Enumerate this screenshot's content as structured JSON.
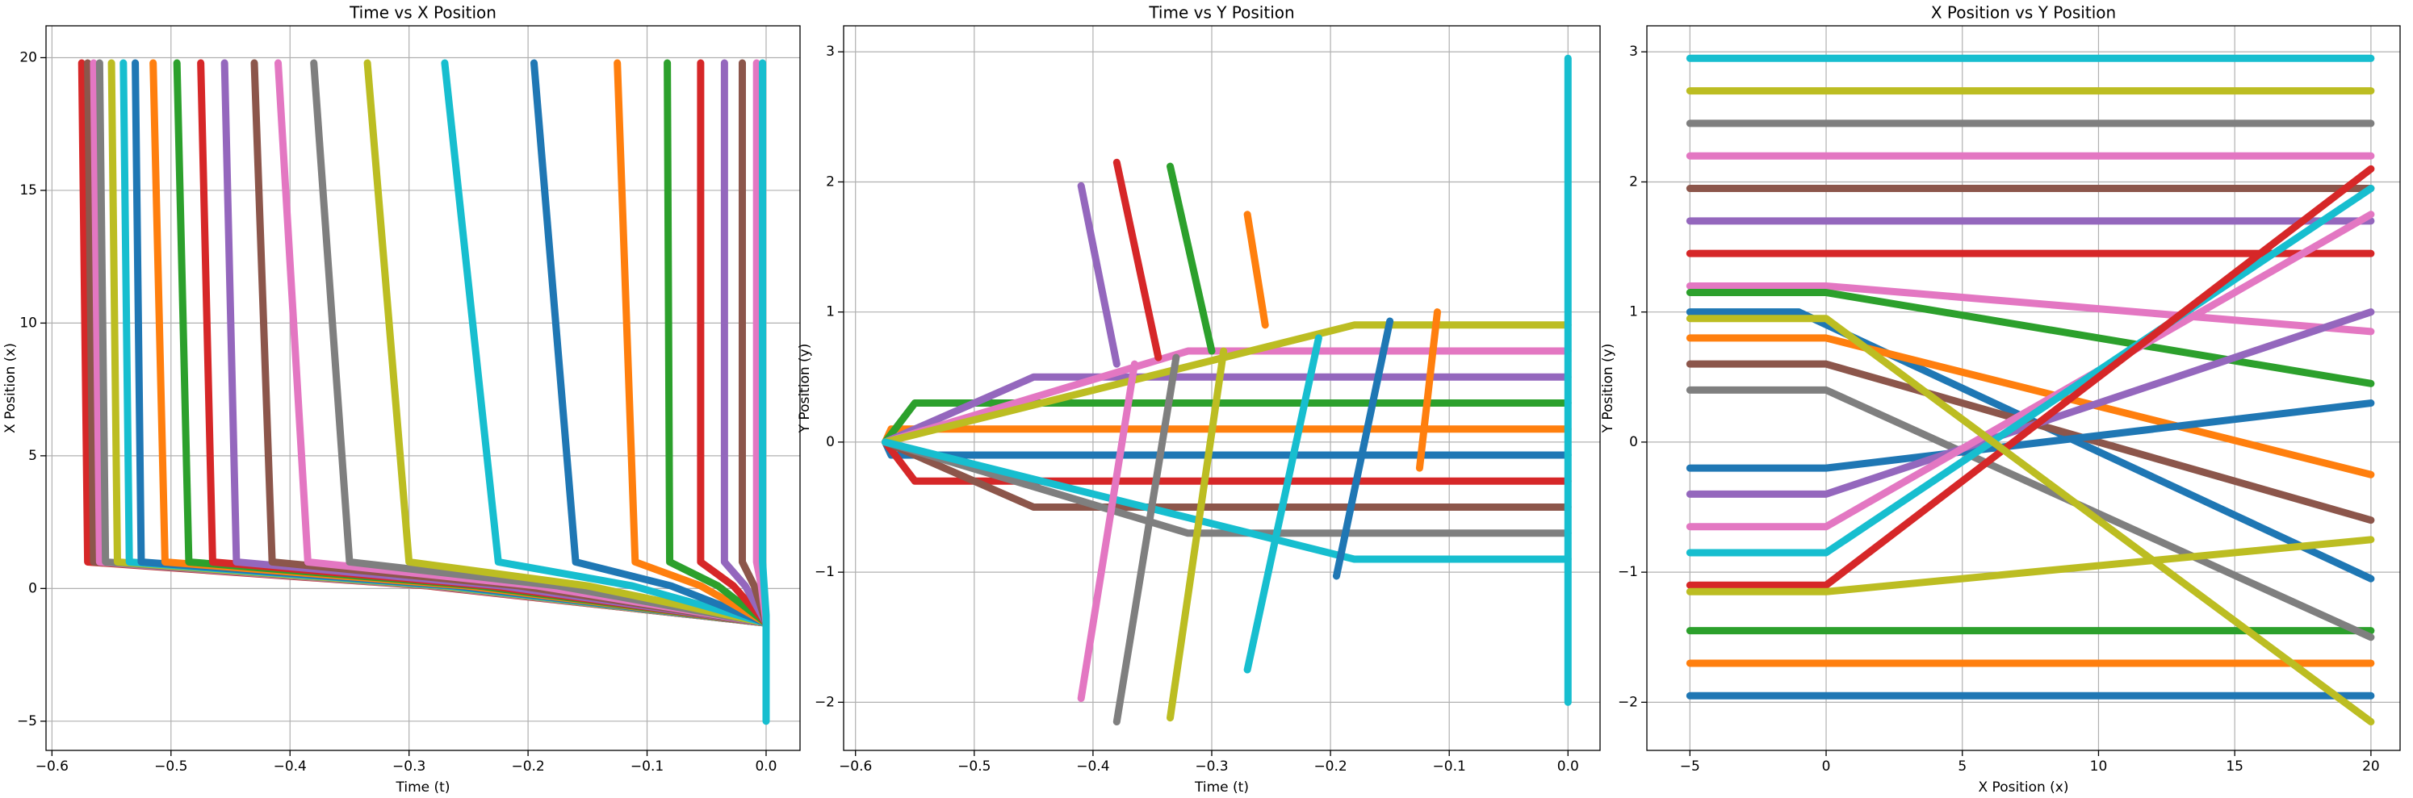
{
  "chart_data": [
    {
      "type": "line",
      "title": "Time vs X Position",
      "x_label": "Time (t)",
      "y_label": "X Position (x)",
      "grid": true,
      "xlim": [
        -0.605,
        0.0285
      ],
      "ylim": [
        -6.1,
        21.2
      ],
      "xticks": [
        {
          "value": -0.6,
          "label": "−0.6"
        },
        {
          "value": -0.5,
          "label": "−0.5"
        },
        {
          "value": -0.4,
          "label": "−0.4"
        },
        {
          "value": -0.3,
          "label": "−0.3"
        },
        {
          "value": -0.2,
          "label": "−0.2"
        },
        {
          "value": -0.1,
          "label": "−0.1"
        },
        {
          "value": 0,
          "label": "0.0"
        }
      ],
      "yticks": [
        {
          "value": -5,
          "label": "−5"
        },
        0,
        5,
        10,
        15,
        20
      ],
      "series": [
        {
          "color": "#d62728",
          "x": [
            0,
            -0.285,
            -0.57,
            -0.575
          ],
          "values": [
            -1.3,
            0.1,
            1.0,
            19.8
          ]
        },
        {
          "color": "#8c564b",
          "x": [
            0,
            -0.2825,
            -0.565,
            -0.57
          ],
          "values": [
            -1.3,
            0.1,
            1.0,
            19.8
          ]
        },
        {
          "color": "#e377c2",
          "x": [
            0,
            -0.28,
            -0.56,
            -0.565
          ],
          "values": [
            -1.3,
            0.1,
            1.0,
            19.8
          ]
        },
        {
          "color": "#7f7f7f",
          "x": [
            0,
            -0.2775,
            -0.555,
            -0.56
          ],
          "values": [
            -1.3,
            0.1,
            1.0,
            19.8
          ]
        },
        {
          "color": "#bcbd22",
          "x": [
            0,
            -0.2725,
            -0.545,
            -0.55
          ],
          "values": [
            -1.3,
            0.1,
            1.0,
            19.8
          ]
        },
        {
          "color": "#17becf",
          "x": [
            0,
            -0.2675,
            -0.535,
            -0.54
          ],
          "values": [
            -1.3,
            0.1,
            1.0,
            19.8
          ]
        },
        {
          "color": "#1f77b4",
          "x": [
            0,
            -0.2625,
            -0.525,
            -0.53
          ],
          "values": [
            -1.3,
            0.1,
            1.0,
            19.8
          ]
        },
        {
          "color": "#ff7f0e",
          "x": [
            0,
            -0.2525,
            -0.505,
            -0.515
          ],
          "values": [
            -1.3,
            0.1,
            1.0,
            19.8
          ]
        },
        {
          "color": "#2ca02c",
          "x": [
            0,
            -0.2425,
            -0.485,
            -0.495
          ],
          "values": [
            -1.3,
            0.1,
            1.0,
            19.8
          ]
        },
        {
          "color": "#d62728",
          "x": [
            0,
            -0.2325,
            -0.465,
            -0.475
          ],
          "values": [
            -1.3,
            0.1,
            1.0,
            19.8
          ]
        },
        {
          "color": "#9467bd",
          "x": [
            0,
            -0.2225,
            -0.445,
            -0.455
          ],
          "values": [
            -1.3,
            0.1,
            1.0,
            19.8
          ]
        },
        {
          "color": "#8c564b",
          "x": [
            0,
            -0.2075,
            -0.415,
            -0.43
          ],
          "values": [
            -1.3,
            0.1,
            1.0,
            19.8
          ]
        },
        {
          "color": "#e377c2",
          "x": [
            0,
            -0.1925,
            -0.385,
            -0.41
          ],
          "values": [
            -1.3,
            0.1,
            1.0,
            19.8
          ]
        },
        {
          "color": "#7f7f7f",
          "x": [
            0,
            -0.175,
            -0.35,
            -0.38
          ],
          "values": [
            -1.3,
            0.1,
            1.0,
            19.8
          ]
        },
        {
          "color": "#bcbd22",
          "x": [
            0,
            -0.15,
            -0.3,
            -0.335
          ],
          "values": [
            -1.3,
            0.1,
            1.0,
            19.8
          ]
        },
        {
          "color": "#17becf",
          "x": [
            0,
            -0.1125,
            -0.225,
            -0.27
          ],
          "values": [
            -1.3,
            0.1,
            1.0,
            19.8
          ]
        },
        {
          "color": "#1f77b4",
          "x": [
            0,
            -0.08,
            -0.16,
            -0.195
          ],
          "values": [
            -1.3,
            0.1,
            1.0,
            19.8
          ]
        },
        {
          "color": "#ff7f0e",
          "x": [
            0,
            -0.055,
            -0.11,
            -0.125
          ],
          "values": [
            -1.3,
            0.1,
            1.0,
            19.8
          ]
        },
        {
          "color": "#2ca02c",
          "x": [
            0,
            -0.0405,
            -0.081,
            -0.083
          ],
          "values": [
            -1.3,
            0.1,
            1.0,
            19.8
          ]
        },
        {
          "color": "#d62728",
          "x": [
            0,
            -0.0275,
            -0.055,
            -0.055
          ],
          "values": [
            -1.3,
            0.1,
            1.0,
            19.8
          ]
        },
        {
          "color": "#9467bd",
          "x": [
            0,
            -0.0175,
            -0.035,
            -0.035
          ],
          "values": [
            -1.3,
            0.1,
            1.0,
            19.8
          ]
        },
        {
          "color": "#8c564b",
          "x": [
            0,
            -0.01,
            -0.02,
            -0.02
          ],
          "values": [
            -1.3,
            0.1,
            1.0,
            19.8
          ]
        },
        {
          "color": "#e377c2",
          "x": [
            0,
            -0.004,
            -0.008,
            -0.008
          ],
          "values": [
            -1.3,
            0.1,
            1.0,
            19.8
          ]
        },
        {
          "color": "#17becf",
          "x": [
            0,
            0,
            -0.003,
            -0.003
          ],
          "values": [
            -5,
            -1.0,
            1.0,
            19.8
          ]
        }
      ]
    },
    {
      "type": "line",
      "title": "Time vs Y Position",
      "x_label": "Time (t)",
      "y_label": "Y Position (y)",
      "grid": true,
      "xlim": [
        -0.61,
        0.027
      ],
      "ylim": [
        -2.37,
        3.2
      ],
      "xticks": [
        {
          "value": -0.6,
          "label": "−0.6"
        },
        {
          "value": -0.5,
          "label": "−0.5"
        },
        {
          "value": -0.4,
          "label": "−0.4"
        },
        {
          "value": -0.3,
          "label": "−0.3"
        },
        {
          "value": -0.2,
          "label": "−0.2"
        },
        {
          "value": -0.1,
          "label": "−0.1"
        },
        {
          "value": 0,
          "label": "0.0"
        }
      ],
      "yticks": [
        {
          "value": -2,
          "label": "−2"
        },
        {
          "value": -1,
          "label": "−1"
        },
        0,
        1,
        2,
        3
      ],
      "series": [
        {
          "color": "#ff7f0e",
          "x": [
            -0.575,
            -0.57,
            0
          ],
          "values": [
            0,
            0.1,
            0.1
          ]
        },
        {
          "color": "#1f77b4",
          "x": [
            -0.575,
            -0.57,
            0
          ],
          "values": [
            0,
            -0.1,
            -0.1
          ]
        },
        {
          "color": "#2ca02c",
          "x": [
            -0.575,
            -0.55,
            0
          ],
          "values": [
            0,
            0.3,
            0.3
          ]
        },
        {
          "color": "#d62728",
          "x": [
            -0.575,
            -0.55,
            0
          ],
          "values": [
            0,
            -0.3,
            -0.3
          ]
        },
        {
          "color": "#9467bd",
          "x": [
            -0.575,
            -0.45,
            0
          ],
          "values": [
            0,
            0.5,
            0.5
          ]
        },
        {
          "color": "#8c564b",
          "x": [
            -0.575,
            -0.45,
            0
          ],
          "values": [
            0,
            -0.5,
            -0.5
          ]
        },
        {
          "color": "#e377c2",
          "x": [
            -0.575,
            -0.32,
            0
          ],
          "values": [
            0,
            0.7,
            0.7
          ]
        },
        {
          "color": "#7f7f7f",
          "x": [
            -0.575,
            -0.32,
            0
          ],
          "values": [
            0,
            -0.7,
            -0.7
          ]
        },
        {
          "color": "#bcbd22",
          "x": [
            -0.575,
            -0.18,
            0
          ],
          "values": [
            0,
            0.9,
            0.9
          ]
        },
        {
          "color": "#17becf",
          "x": [
            -0.575,
            -0.18,
            0
          ],
          "values": [
            0,
            -0.9,
            -0.9
          ]
        },
        {
          "color": "#17becf",
          "x": [
            -0.27,
            -0.21
          ],
          "values": [
            -1.75,
            0.8
          ]
        },
        {
          "color": "#ff7f0e",
          "x": [
            -0.27,
            -0.255
          ],
          "values": [
            1.75,
            0.9
          ]
        },
        {
          "color": "#bcbd22",
          "x": [
            -0.335,
            -0.29
          ],
          "values": [
            -2.12,
            0.7
          ]
        },
        {
          "color": "#2ca02c",
          "x": [
            -0.335,
            -0.3
          ],
          "values": [
            2.12,
            0.7
          ]
        },
        {
          "color": "#7f7f7f",
          "x": [
            -0.38,
            -0.33
          ],
          "values": [
            -2.15,
            0.65
          ]
        },
        {
          "color": "#d62728",
          "x": [
            -0.38,
            -0.345
          ],
          "values": [
            2.15,
            0.65
          ]
        },
        {
          "color": "#e377c2",
          "x": [
            -0.41,
            -0.365
          ],
          "values": [
            -1.97,
            0.6
          ]
        },
        {
          "color": "#9467bd",
          "x": [
            -0.41,
            -0.38
          ],
          "values": [
            1.97,
            0.6
          ]
        },
        {
          "color": "#1f77b4",
          "x": [
            -0.195,
            -0.15
          ],
          "values": [
            -1.03,
            0.93
          ]
        },
        {
          "color": "#ff7f0e",
          "x": [
            -0.125,
            -0.11
          ],
          "values": [
            -0.2,
            1.0
          ]
        },
        {
          "color": "#17becf",
          "x": [
            0,
            0
          ],
          "values": [
            -2,
            2.95
          ]
        }
      ]
    },
    {
      "type": "line",
      "title": "X Position vs Y Position",
      "x_label": "X Position (x)",
      "y_label": "Y Position (y)",
      "grid": true,
      "xlim": [
        -6.58,
        21.07
      ],
      "ylim": [
        -2.37,
        3.2
      ],
      "xticks": [
        {
          "value": -5,
          "label": "−5"
        },
        0,
        5,
        10,
        15,
        20
      ],
      "yticks": [
        {
          "value": -2,
          "label": "−2"
        },
        {
          "value": -1,
          "label": "−1"
        },
        0,
        1,
        2,
        3
      ],
      "series": [
        {
          "color": "#17becf",
          "x": [
            -5,
            20
          ],
          "values": [
            2.95,
            2.95
          ]
        },
        {
          "color": "#bcbd22",
          "x": [
            -5,
            20
          ],
          "values": [
            2.7,
            2.7
          ]
        },
        {
          "color": "#7f7f7f",
          "x": [
            -5,
            20
          ],
          "values": [
            2.45,
            2.45
          ]
        },
        {
          "color": "#e377c2",
          "x": [
            -5,
            20
          ],
          "values": [
            2.2,
            2.2
          ]
        },
        {
          "color": "#8c564b",
          "x": [
            -5,
            20
          ],
          "values": [
            1.95,
            1.95
          ]
        },
        {
          "color": "#9467bd",
          "x": [
            -5,
            20
          ],
          "values": [
            1.7,
            1.7
          ]
        },
        {
          "color": "#d62728",
          "x": [
            -5,
            20
          ],
          "values": [
            1.45,
            1.45
          ]
        },
        {
          "color": "#2ca02c",
          "x": [
            -5,
            20
          ],
          "values": [
            -1.45,
            -1.45
          ]
        },
        {
          "color": "#ff7f0e",
          "x": [
            -5,
            20
          ],
          "values": [
            -1.7,
            -1.7
          ]
        },
        {
          "color": "#1f77b4",
          "x": [
            -5,
            20
          ],
          "values": [
            -1.95,
            -1.95
          ]
        },
        {
          "color": "#e377c2",
          "x": [
            -5,
            0,
            20
          ],
          "values": [
            1.2,
            1.2,
            0.85
          ]
        },
        {
          "color": "#2ca02c",
          "x": [
            -5,
            0,
            20
          ],
          "values": [
            1.15,
            1.15,
            0.45
          ]
        },
        {
          "color": "#1f77b4",
          "x": [
            -5,
            -1,
            20
          ],
          "values": [
            1.0,
            1.0,
            -1.05
          ]
        },
        {
          "color": "#ff7f0e",
          "x": [
            -5,
            0,
            20
          ],
          "values": [
            0.8,
            0.8,
            -0.25
          ]
        },
        {
          "color": "#8c564b",
          "x": [
            -5,
            0,
            20
          ],
          "values": [
            0.6,
            0.6,
            -0.6
          ]
        },
        {
          "color": "#7f7f7f",
          "x": [
            -5,
            0,
            20
          ],
          "values": [
            0.4,
            0.4,
            -1.5
          ]
        },
        {
          "color": "#1f77b4",
          "x": [
            -5,
            0,
            20
          ],
          "values": [
            -0.2,
            -0.2,
            0.3
          ]
        },
        {
          "color": "#9467bd",
          "x": [
            -5,
            0,
            20
          ],
          "values": [
            -0.4,
            -0.4,
            1.0
          ]
        },
        {
          "color": "#e377c2",
          "x": [
            -5,
            0,
            20
          ],
          "values": [
            -0.65,
            -0.65,
            1.75
          ]
        },
        {
          "color": "#17becf",
          "x": [
            -5,
            0,
            20
          ],
          "values": [
            -0.85,
            -0.85,
            1.95
          ]
        },
        {
          "color": "#d62728",
          "x": [
            -5,
            0,
            20
          ],
          "values": [
            -1.1,
            -1.1,
            2.1
          ]
        },
        {
          "color": "#bcbd22",
          "x": [
            -5,
            0,
            20
          ],
          "values": [
            -1.15,
            -1.15,
            -0.75
          ]
        },
        {
          "color": "#bcbd22",
          "x": [
            -5,
            0,
            20
          ],
          "values": [
            0.95,
            0.95,
            -2.15
          ]
        }
      ]
    }
  ]
}
